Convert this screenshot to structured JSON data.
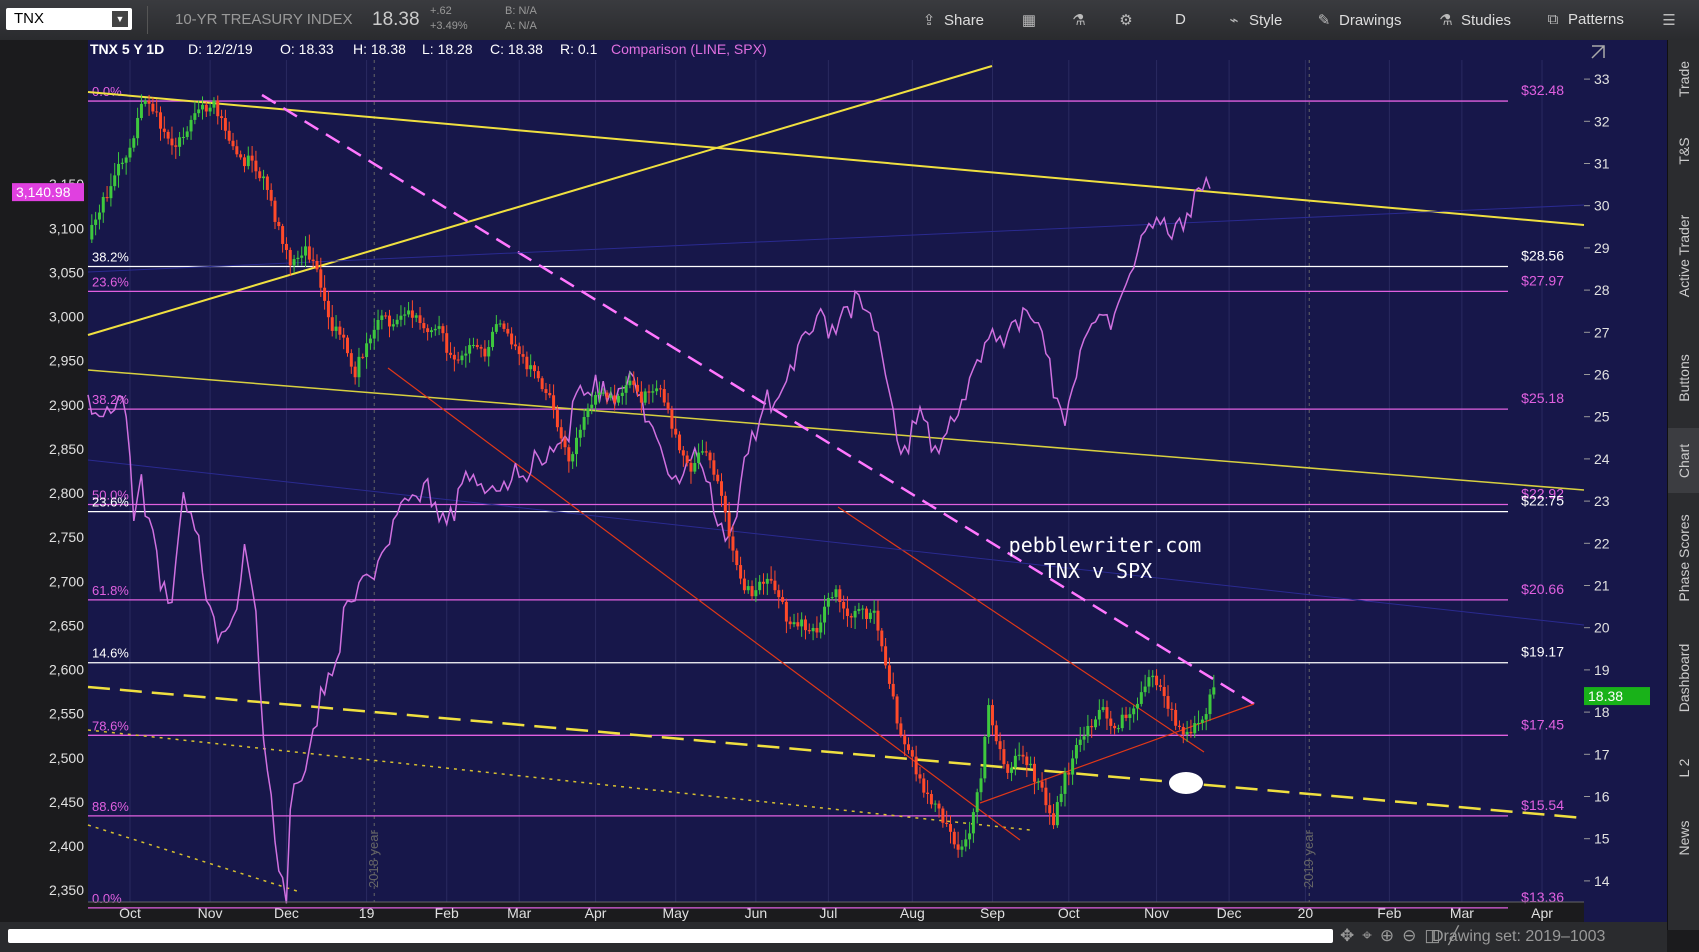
{
  "toolbar": {
    "symbol": "TNX",
    "description": "10-YR TREASURY INDEX",
    "last": "18.38",
    "change": "+.62",
    "change_pct": "+3.49%",
    "bid": "B: N/A",
    "ask": "A: N/A",
    "share": "Share",
    "period": "D",
    "style": "Style",
    "drawings": "Drawings",
    "studies": "Studies",
    "patterns": "Patterns"
  },
  "sidebar": [
    "Trade",
    "T&S",
    "Active Trader",
    "Buttons",
    "Chart",
    "Phase Scores",
    "Dashboard",
    "L 2",
    "News"
  ],
  "bottom": {
    "drawing_set": "Drawing set: 2019–1003"
  },
  "chart_data": {
    "type": "line",
    "header": {
      "symbol_period": "TNX 5 Y 1D",
      "date": "D: 12/2/19",
      "open": "O: 18.33",
      "high": "H: 18.38",
      "low": "L: 18.28",
      "close": "C: 18.38",
      "range": "R: 0.1",
      "comparison": "Comparison (LINE, SPX)"
    },
    "watermark": [
      "pebblewriter.com",
      "TNX v SPX"
    ],
    "left_axis": {
      "ticks": [
        {
          "label": "3,150",
          "v": 3150
        },
        {
          "label": "3,100",
          "v": 3100
        },
        {
          "label": "3,050",
          "v": 3050
        },
        {
          "label": "3,000",
          "v": 3000
        },
        {
          "label": "2,950",
          "v": 2950
        },
        {
          "label": "2,900",
          "v": 2900
        },
        {
          "label": "2,850",
          "v": 2850
        },
        {
          "label": "2,800",
          "v": 2800
        },
        {
          "label": "2,750",
          "v": 2750
        },
        {
          "label": "2,700",
          "v": 2700
        },
        {
          "label": "2,650",
          "v": 2650
        },
        {
          "label": "2,600",
          "v": 2600
        },
        {
          "label": "2,550",
          "v": 2550
        },
        {
          "label": "2,500",
          "v": 2500
        },
        {
          "label": "2,450",
          "v": 2450
        },
        {
          "label": "2,400",
          "v": 2400
        },
        {
          "label": "2,350",
          "v": 2350
        }
      ],
      "current": "3,140.98"
    },
    "right_axis": {
      "ticks": [
        "33",
        "32",
        "31",
        "30",
        "29",
        "28",
        "27",
        "26",
        "25",
        "24",
        "23",
        "22",
        "21",
        "20",
        "19",
        "18",
        "17",
        "16",
        "15",
        "14"
      ],
      "ylim": [
        13.5,
        33.5
      ],
      "current": "18.38"
    },
    "x_axis": {
      "ticks": [
        {
          "label": "Oct",
          "i": 11
        },
        {
          "label": "Nov",
          "i": 32
        },
        {
          "label": "Dec",
          "i": 52
        },
        {
          "label": "19",
          "i": 73
        },
        {
          "label": "Feb",
          "i": 94
        },
        {
          "label": "Mar",
          "i": 113
        },
        {
          "label": "Apr",
          "i": 133
        },
        {
          "label": "May",
          "i": 154
        },
        {
          "label": "Jun",
          "i": 175
        },
        {
          "label": "Jul",
          "i": 194
        },
        {
          "label": "Aug",
          "i": 216
        },
        {
          "label": "Sep",
          "i": 237
        },
        {
          "label": "Oct",
          "i": 257
        },
        {
          "label": "Nov",
          "i": 280
        },
        {
          "label": "Dec",
          "i": 299
        },
        {
          "label": "20",
          "i": 319
        },
        {
          "label": "Feb",
          "i": 341
        },
        {
          "label": "Mar",
          "i": 360
        },
        {
          "label": "Apr",
          "i": 381
        }
      ],
      "year_markers": [
        {
          "label": "2018 year",
          "i": 75
        },
        {
          "label": "2019 year",
          "i": 320
        }
      ]
    },
    "fib_levels": [
      {
        "left": "0.0%",
        "right": "$32.48",
        "v": 32.48,
        "color": "#e060e0"
      },
      {
        "left": "38.2%",
        "right": "$28.56",
        "v": 28.56,
        "color": "#ffffff"
      },
      {
        "left": "23.6%",
        "right": "$27.97",
        "v": 27.97,
        "color": "#e060e0"
      },
      {
        "left": "38.2%",
        "right": "$25.18",
        "v": 25.18,
        "color": "#e060e0"
      },
      {
        "left": "50.0%",
        "right": "$22.92",
        "v": 22.92,
        "color": "#e060e0"
      },
      {
        "left": "23.6%",
        "right": "$22.75",
        "v": 22.75,
        "color": "#ffffff"
      },
      {
        "left": "61.8%",
        "right": "$20.66",
        "v": 20.66,
        "color": "#e060e0"
      },
      {
        "left": "14.6%",
        "right": "$19.17",
        "v": 19.17,
        "color": "#ffffff"
      },
      {
        "left": "78.6%",
        "right": "$17.45",
        "v": 17.45,
        "color": "#e060e0"
      },
      {
        "left": "88.6%",
        "right": "$15.54",
        "v": 15.54,
        "color": "#e060e0"
      },
      {
        "left": "0.0%",
        "right": "$13.36",
        "v": 13.36,
        "color": "#e060e0"
      }
    ],
    "tnx_anchors": [
      [
        0,
        29.2
      ],
      [
        4,
        30.0
      ],
      [
        8,
        31.0
      ],
      [
        12,
        31.5
      ],
      [
        14,
        32.4
      ],
      [
        18,
        32.0
      ],
      [
        22,
        31.5
      ],
      [
        26,
        31.8
      ],
      [
        30,
        32.2
      ],
      [
        34,
        32.3
      ],
      [
        38,
        31.5
      ],
      [
        42,
        31.0
      ],
      [
        46,
        30.5
      ],
      [
        50,
        29.6
      ],
      [
        53,
        28.7
      ],
      [
        56,
        29.0
      ],
      [
        60,
        28.3
      ],
      [
        63,
        27.3
      ],
      [
        67,
        27.0
      ],
      [
        70,
        26.0
      ],
      [
        73,
        26.6
      ],
      [
        76,
        27.2
      ],
      [
        80,
        27.4
      ],
      [
        84,
        27.6
      ],
      [
        88,
        26.9
      ],
      [
        92,
        27.0
      ],
      [
        96,
        26.4
      ],
      [
        100,
        26.7
      ],
      [
        104,
        26.3
      ],
      [
        108,
        27.3
      ],
      [
        112,
        26.8
      ],
      [
        116,
        26.1
      ],
      [
        120,
        25.5
      ],
      [
        124,
        24.7
      ],
      [
        126,
        24.1
      ],
      [
        130,
        25.0
      ],
      [
        134,
        25.4
      ],
      [
        138,
        25.4
      ],
      [
        142,
        25.9
      ],
      [
        146,
        25.4
      ],
      [
        150,
        25.5
      ],
      [
        154,
        24.6
      ],
      [
        158,
        23.9
      ],
      [
        162,
        24.0
      ],
      [
        166,
        23.1
      ],
      [
        168,
        22.3
      ],
      [
        171,
        21.2
      ],
      [
        175,
        20.8
      ],
      [
        179,
        21.1
      ],
      [
        183,
        20.2
      ],
      [
        187,
        20.2
      ],
      [
        191,
        19.7
      ],
      [
        193,
        20.3
      ],
      [
        196,
        20.9
      ],
      [
        199,
        20.3
      ],
      [
        203,
        20.5
      ],
      [
        206,
        20.2
      ],
      [
        208,
        19.4
      ],
      [
        210,
        18.5
      ],
      [
        213,
        17.6
      ],
      [
        216,
        17.0
      ],
      [
        219,
        16.2
      ],
      [
        221,
        15.8
      ],
      [
        225,
        15.2
      ],
      [
        228,
        14.8
      ],
      [
        231,
        15.3
      ],
      [
        234,
        16.6
      ],
      [
        236,
        18.0
      ],
      [
        238,
        17.2
      ],
      [
        241,
        16.5
      ],
      [
        244,
        17.2
      ],
      [
        247,
        16.8
      ],
      [
        250,
        16.0
      ],
      [
        253,
        15.3
      ],
      [
        256,
        16.4
      ],
      [
        259,
        17.3
      ],
      [
        262,
        17.7
      ],
      [
        266,
        17.9
      ],
      [
        269,
        17.4
      ],
      [
        272,
        18.0
      ],
      [
        275,
        18.3
      ],
      [
        278,
        18.9
      ],
      [
        280,
        18.6
      ],
      [
        283,
        18.0
      ],
      [
        286,
        17.5
      ],
      [
        289,
        17.7
      ],
      [
        291,
        17.8
      ],
      [
        293,
        18.1
      ],
      [
        295,
        18.38
      ]
    ],
    "spx_anchors": [
      [
        0,
        2900
      ],
      [
        6,
        2910
      ],
      [
        10,
        2880
      ],
      [
        12,
        2760
      ],
      [
        14,
        2800
      ],
      [
        17,
        2760
      ],
      [
        19,
        2710
      ],
      [
        22,
        2680
      ],
      [
        25,
        2780
      ],
      [
        27,
        2760
      ],
      [
        31,
        2700
      ],
      [
        34,
        2640
      ],
      [
        36,
        2660
      ],
      [
        39,
        2650
      ],
      [
        41,
        2740
      ],
      [
        44,
        2660
      ],
      [
        46,
        2540
      ],
      [
        48,
        2470
      ],
      [
        50,
        2380
      ],
      [
        52,
        2350
      ],
      [
        53,
        2440
      ],
      [
        55,
        2460
      ],
      [
        57,
        2480
      ],
      [
        59,
        2530
      ],
      [
        61,
        2580
      ],
      [
        63,
        2600
      ],
      [
        66,
        2640
      ],
      [
        69,
        2670
      ],
      [
        72,
        2690
      ],
      [
        75,
        2710
      ],
      [
        78,
        2750
      ],
      [
        81,
        2780
      ],
      [
        84,
        2770
      ],
      [
        87,
        2790
      ],
      [
        90,
        2800
      ],
      [
        93,
        2780
      ],
      [
        96,
        2790
      ],
      [
        99,
        2810
      ],
      [
        102,
        2800
      ],
      [
        105,
        2820
      ],
      [
        108,
        2810
      ],
      [
        111,
        2830
      ],
      [
        114,
        2800
      ],
      [
        117,
        2830
      ],
      [
        120,
        2850
      ],
      [
        123,
        2870
      ],
      [
        126,
        2880
      ],
      [
        129,
        2900
      ],
      [
        132,
        2910
      ],
      [
        135,
        2930
      ],
      [
        138,
        2910
      ],
      [
        140,
        2940
      ],
      [
        143,
        2920
      ],
      [
        146,
        2880
      ],
      [
        148,
        2870
      ],
      [
        151,
        2850
      ],
      [
        154,
        2830
      ],
      [
        156,
        2810
      ],
      [
        159,
        2840
      ],
      [
        162,
        2800
      ],
      [
        165,
        2770
      ],
      [
        168,
        2760
      ],
      [
        171,
        2800
      ],
      [
        173,
        2840
      ],
      [
        176,
        2870
      ],
      [
        178,
        2900
      ],
      [
        181,
        2930
      ],
      [
        184,
        2950
      ],
      [
        187,
        2960
      ],
      [
        190,
        2980
      ],
      [
        193,
        2990
      ],
      [
        196,
        3000
      ],
      [
        199,
        3020
      ],
      [
        202,
        3010
      ],
      [
        205,
        2990
      ],
      [
        208,
        2960
      ],
      [
        211,
        2900
      ],
      [
        213,
        2850
      ],
      [
        216,
        2870
      ],
      [
        219,
        2880
      ],
      [
        221,
        2840
      ],
      [
        224,
        2880
      ],
      [
        227,
        2900
      ],
      [
        229,
        2910
      ],
      [
        232,
        2920
      ],
      [
        235,
        2960
      ],
      [
        238,
        2980
      ],
      [
        241,
        2990
      ],
      [
        244,
        3000
      ],
      [
        247,
        2980
      ],
      [
        250,
        2970
      ],
      [
        253,
        2920
      ],
      [
        256,
        2890
      ],
      [
        259,
        2940
      ],
      [
        262,
        2970
      ],
      [
        264,
        2990
      ],
      [
        267,
        3000
      ],
      [
        270,
        3020
      ],
      [
        273,
        3050
      ],
      [
        276,
        3080
      ],
      [
        279,
        3090
      ],
      [
        282,
        3100
      ],
      [
        285,
        3110
      ],
      [
        288,
        3120
      ],
      [
        291,
        3130
      ],
      [
        293,
        3150
      ],
      [
        294,
        3140
      ]
    ]
  }
}
